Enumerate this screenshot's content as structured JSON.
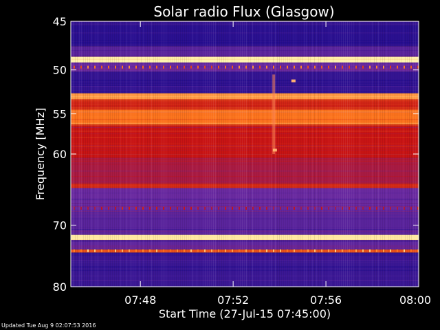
{
  "chart_data": {
    "type": "heatmap",
    "title": "Solar radio Flux (Glasgow)",
    "xlabel": "Start Time (27-Jul-15 07:45:00)",
    "ylabel": "Frequency [MHz]",
    "x_ticks": [
      "07:48",
      "07:52",
      "07:56",
      "08:00"
    ],
    "x_tick_minutes": [
      48,
      52,
      56,
      60
    ],
    "xlim_minutes": [
      45,
      60
    ],
    "y_ticks": [
      45,
      50,
      55,
      60,
      70,
      80
    ],
    "ylim": [
      45,
      80
    ],
    "y_scale": "log",
    "colors": {
      "low": "#1a0a8c",
      "mid_low": "#6a2aa0",
      "mid": "#c81414",
      "high": "#ff7a1e",
      "peak": "#fff4b0"
    },
    "bands_mhz": [
      {
        "from": 45.0,
        "to": 45.4,
        "level": 0.1
      },
      {
        "from": 45.4,
        "to": 47.5,
        "level": 0.05
      },
      {
        "from": 47.5,
        "to": 48.6,
        "level": 0.2
      },
      {
        "from": 48.6,
        "to": 49.2,
        "level": 1.0
      },
      {
        "from": 49.2,
        "to": 50.2,
        "level": 0.25
      },
      {
        "from": 50.2,
        "to": 52.6,
        "level": 0.08
      },
      {
        "from": 52.6,
        "to": 53.3,
        "level": 0.85
      },
      {
        "from": 53.3,
        "to": 54.5,
        "level": 0.6
      },
      {
        "from": 54.5,
        "to": 56.3,
        "level": 0.78
      },
      {
        "from": 56.3,
        "to": 60.5,
        "level": 0.55
      },
      {
        "from": 60.5,
        "to": 64.0,
        "level": 0.45
      },
      {
        "from": 64.0,
        "to": 64.6,
        "level": 0.6
      },
      {
        "from": 64.6,
        "to": 68.0,
        "level": 0.25
      },
      {
        "from": 68.0,
        "to": 71.5,
        "level": 0.2
      },
      {
        "from": 71.5,
        "to": 72.3,
        "level": 0.98
      },
      {
        "from": 72.3,
        "to": 73.8,
        "level": 0.22
      },
      {
        "from": 73.8,
        "to": 74.3,
        "level": 0.7
      },
      {
        "from": 74.3,
        "to": 80.0,
        "level": 0.1
      }
    ],
    "features": [
      {
        "kind": "vertical_streak",
        "minute": 53.75,
        "from_mhz": 50.5,
        "to_mhz": 60.0
      },
      {
        "kind": "spot",
        "minute": 53.8,
        "mhz": 59.5
      },
      {
        "kind": "spot",
        "minute": 54.6,
        "mhz": 51.2
      }
    ]
  },
  "footer": "Updated Tue Aug  9 02:07:53 2016"
}
